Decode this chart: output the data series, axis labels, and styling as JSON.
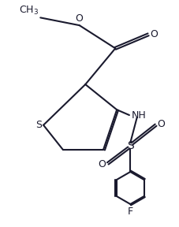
{
  "bg_color": "#ffffff",
  "line_color": "#1a1a2e",
  "bond_width": 1.5,
  "font_size": 9,
  "figsize": [
    2.27,
    2.88
  ],
  "dpi": 100,
  "xlim": [
    0,
    10
  ],
  "ylim": [
    0,
    13
  ]
}
